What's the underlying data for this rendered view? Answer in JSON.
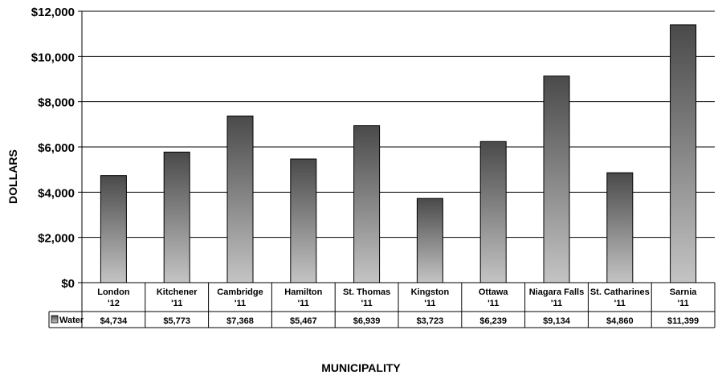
{
  "chart_data": {
    "type": "bar",
    "title": "",
    "ylabel": "DOLLARS",
    "xlabel": "MUNICIPALITY",
    "ylim": [
      0,
      12000
    ],
    "yticks": [
      0,
      2000,
      4000,
      6000,
      8000,
      10000,
      12000
    ],
    "ytick_labels": [
      "$0",
      "$2,000",
      "$4,000",
      "$6,000",
      "$8,000",
      "$10,000",
      "$12,000"
    ],
    "grid": true,
    "legend": "data-table-left",
    "categories": [
      {
        "line1": "London",
        "line2": "'12"
      },
      {
        "line1": "Kitchener",
        "line2": "'11"
      },
      {
        "line1": "Cambridge",
        "line2": "'11"
      },
      {
        "line1": "Hamilton",
        "line2": "'11"
      },
      {
        "line1": "St. Thomas",
        "line2": "'11"
      },
      {
        "line1": "Kingston",
        "line2": "'11"
      },
      {
        "line1": "Ottawa",
        "line2": "'11"
      },
      {
        "line1": "Niagara Falls",
        "line2": "'11"
      },
      {
        "line1": "St. Catharines",
        "line2": "'11"
      },
      {
        "line1": "Sarnia",
        "line2": "'11"
      }
    ],
    "series": [
      {
        "name": "Water",
        "values": [
          4734,
          5773,
          7368,
          5467,
          6939,
          3723,
          6239,
          9134,
          4860,
          11399
        ],
        "value_labels": [
          "$4,734",
          "$5,773",
          "$7,368",
          "$5,467",
          "$6,939",
          "$3,723",
          "$6,239",
          "$9,134",
          "$4,860",
          "$11,399"
        ],
        "gradient_top": "#4a4a4a",
        "gradient_bottom": "#c4c4c4"
      }
    ]
  }
}
